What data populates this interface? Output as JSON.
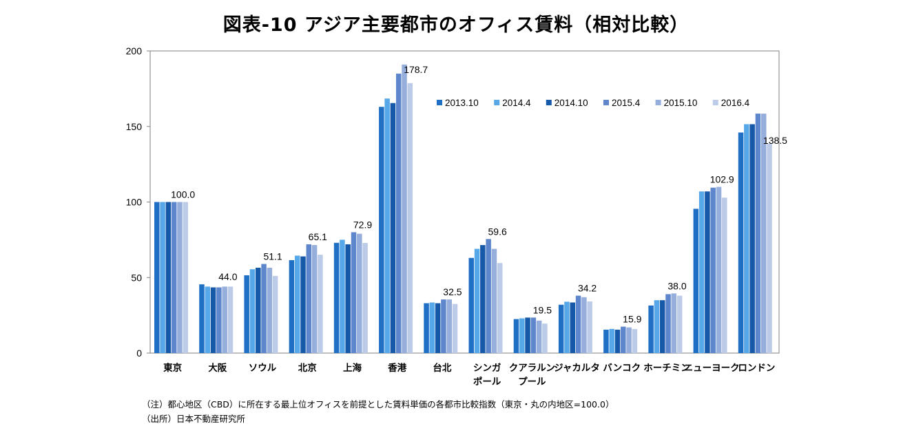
{
  "title": "図表-10 アジア主要都市のオフィス賃料（相対比較）",
  "notes": [
    "（注）都心地区（CBD）に所在する最上位オフィスを前提とした賃料単価の各都市比較指数（東京・丸の内地区=100.0）",
    "（出所）日本不動産研究所"
  ],
  "chart_data": {
    "type": "bar",
    "title": "図表-10 アジア主要都市のオフィス賃料（相対比較）",
    "xlabel": "",
    "ylabel": "",
    "ylim": [
      0,
      200
    ],
    "yticks": [
      0,
      50,
      100,
      150,
      200
    ],
    "grid": false,
    "legend_position": "top-right",
    "categories": [
      [
        "東京"
      ],
      [
        "大阪"
      ],
      [
        "ソウル"
      ],
      [
        "北京"
      ],
      [
        "上海"
      ],
      [
        "香港"
      ],
      [
        "台北"
      ],
      [
        "シンガ",
        "ポール"
      ],
      [
        "クアラルン",
        "プール"
      ],
      [
        "ジャカルタ"
      ],
      [
        "バンコク"
      ],
      [
        "ホーチミン"
      ],
      [
        "ニューヨーク"
      ],
      [
        "ロンドン"
      ]
    ],
    "series": [
      {
        "name": "2013.10",
        "color": "#1f6fc5",
        "values": [
          100,
          45.5,
          51.5,
          61.5,
          73,
          163,
          33,
          63,
          22.5,
          32,
          15.5,
          31.5,
          95.5,
          146
        ]
      },
      {
        "name": "2014.4",
        "color": "#56a8e8",
        "values": [
          100,
          44,
          55.5,
          64.5,
          75,
          168.5,
          33.5,
          69,
          23,
          34,
          16,
          35,
          107,
          151.5
        ]
      },
      {
        "name": "2014.10",
        "color": "#1659a8",
        "values": [
          100,
          43.5,
          56.5,
          64,
          72,
          165.5,
          33,
          71.5,
          23.5,
          33.5,
          15.5,
          35,
          107,
          151.5
        ]
      },
      {
        "name": "2015.4",
        "color": "#5d86cc",
        "values": [
          100,
          43.5,
          59,
          72,
          80,
          185,
          35.5,
          75.5,
          23.5,
          38,
          17.5,
          39,
          109.5,
          158.5
        ]
      },
      {
        "name": "2015.10",
        "color": "#95aedb",
        "values": [
          100,
          44,
          56.5,
          71.5,
          79,
          191,
          35.5,
          69,
          21.5,
          37,
          17,
          39.5,
          110,
          158.5
        ]
      },
      {
        "name": "2016.4",
        "color": "#bccbe7",
        "values": [
          100,
          44.0,
          51.1,
          65.1,
          72.9,
          178.7,
          32.5,
          59.6,
          19.5,
          34.2,
          15.9,
          38.0,
          102.9,
          138.5
        ]
      }
    ],
    "data_labels": [
      "100.0",
      "44.0",
      "51.1",
      "65.1",
      "72.9",
      "178.7",
      "32.5",
      "59.6",
      "19.5",
      "34.2",
      "15.9",
      "38.0",
      "102.9",
      "138.5"
    ]
  }
}
